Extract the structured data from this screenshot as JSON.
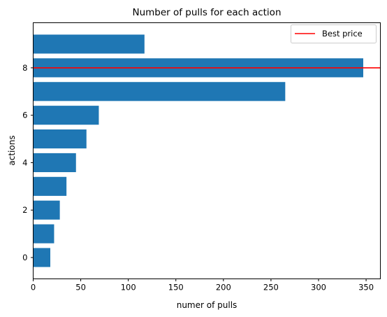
{
  "chart_data": {
    "type": "bar",
    "orientation": "horizontal",
    "title": "Number of pulls for each action",
    "xlabel": "numer of pulls",
    "ylabel": "actions",
    "categories": [
      0,
      1,
      2,
      3,
      4,
      5,
      6,
      7,
      8,
      9
    ],
    "values": [
      18,
      22,
      28,
      35,
      45,
      56,
      69,
      265,
      347,
      117
    ],
    "xlim": [
      0,
      365
    ],
    "ylim": [
      -0.9,
      9.9
    ],
    "xticks": [
      0,
      50,
      100,
      150,
      200,
      250,
      300,
      350
    ],
    "yticks": [
      0,
      2,
      4,
      6,
      8
    ],
    "bar_color": "#1f77b4",
    "reference_line": {
      "label": "Best price",
      "y": 8,
      "color": "#ff0000"
    },
    "legend": {
      "placement": "top-right",
      "entries": [
        "Best price"
      ]
    },
    "grid": false
  }
}
